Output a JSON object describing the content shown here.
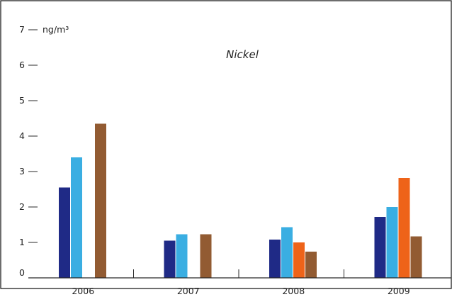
{
  "chart_data": {
    "type": "bar",
    "title": "Nickel",
    "unit_label": "ng/m³",
    "categories": [
      "2006",
      "2007",
      "2008",
      "2009"
    ],
    "y_ticks": [
      "0",
      "1",
      "2",
      "3",
      "4",
      "5",
      "6",
      "7"
    ],
    "ylim": [
      0,
      7
    ],
    "grid": false,
    "legend": "none",
    "series": [
      {
        "color": "#1f2a86",
        "values": [
          2.55,
          1.05,
          1.08,
          1.72
        ]
      },
      {
        "color": "#3aaee2",
        "values": [
          3.4,
          1.23,
          1.43,
          2.0
        ]
      },
      {
        "color": "#ee6319",
        "values": [
          null,
          null,
          1.0,
          2.82
        ]
      },
      {
        "color": "#925b32",
        "values": [
          4.35,
          1.23,
          0.74,
          1.17
        ]
      }
    ]
  }
}
